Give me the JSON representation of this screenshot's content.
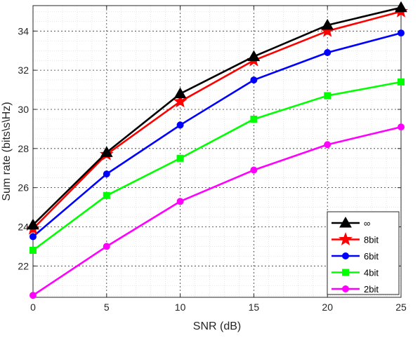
{
  "chart_data": {
    "type": "line",
    "title": "",
    "xlabel": "SNR (dB)",
    "ylabel": "Sum rate (bits\\s\\Hz)",
    "x": [
      0,
      5,
      10,
      15,
      20,
      25
    ],
    "xlim": [
      0,
      25
    ],
    "ylim": [
      20.4,
      35.3
    ],
    "xticks": [
      0,
      5,
      10,
      15,
      20,
      25
    ],
    "yticks": [
      22,
      24,
      26,
      28,
      30,
      32,
      34
    ],
    "grid": true,
    "minor_grid": true,
    "legend_position": "bottom-right",
    "series": [
      {
        "name": "∞",
        "color": "#000000",
        "marker": "triangle",
        "values": [
          24.1,
          27.8,
          30.8,
          32.7,
          34.3,
          35.2
        ]
      },
      {
        "name": "8bit",
        "color": "#ff0000",
        "marker": "star",
        "values": [
          23.9,
          27.7,
          30.4,
          32.5,
          34.0,
          35.0
        ]
      },
      {
        "name": "6bit",
        "color": "#0000ff",
        "marker": "circle",
        "values": [
          23.5,
          26.7,
          29.2,
          31.5,
          32.9,
          33.9
        ]
      },
      {
        "name": "4bit",
        "color": "#00ff00",
        "marker": "square",
        "values": [
          22.8,
          25.6,
          27.5,
          29.5,
          30.7,
          31.4
        ]
      },
      {
        "name": "2bit",
        "color": "#ff00ff",
        "marker": "circle",
        "values": [
          20.5,
          23.0,
          25.3,
          26.9,
          28.2,
          29.1
        ]
      }
    ]
  }
}
